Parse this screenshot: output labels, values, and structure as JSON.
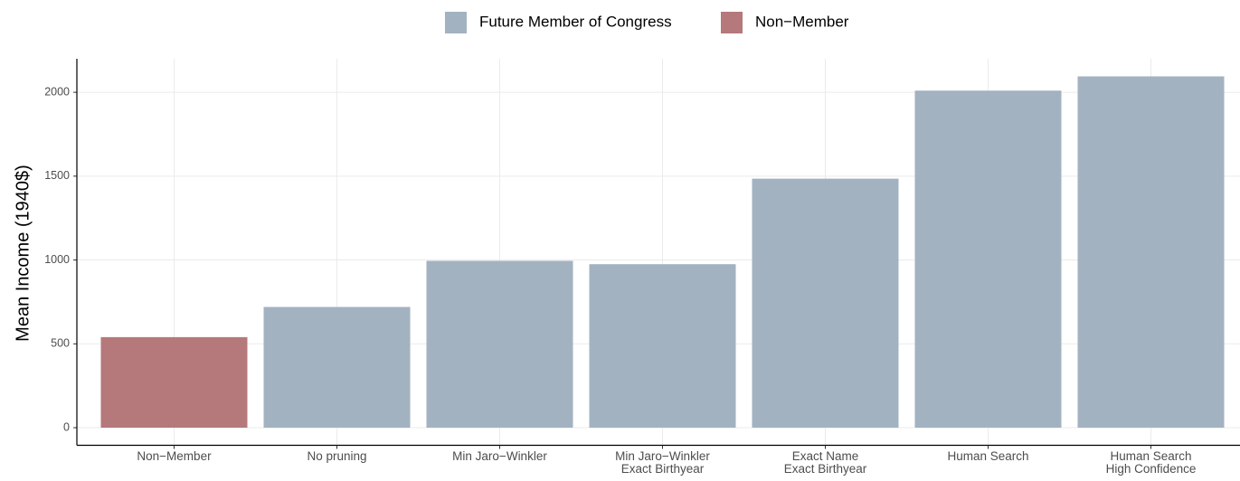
{
  "chart_data": {
    "type": "bar",
    "y_label": "Mean Income (1940$)",
    "categories": [
      "Non−Member",
      "No pruning",
      "Min Jaro−Winkler",
      "Min Jaro−Winkler\nExact Birthyear",
      "Exact Name\nExact Birthyear",
      "Human Search",
      "Human Search\nHigh Confidence"
    ],
    "series": [
      {
        "name": "Future Member of Congress",
        "color": "#a3b2c1",
        "values": [
          null,
          720,
          995,
          975,
          1485,
          2010,
          2095
        ]
      },
      {
        "name": "Non−Member",
        "color": "#b5787b",
        "values": [
          540,
          null,
          null,
          null,
          null,
          null,
          null
        ]
      }
    ],
    "ylim": [
      -105,
      2200
    ],
    "yticks": [
      0,
      500,
      1000,
      1500,
      2000
    ],
    "grid": true
  }
}
